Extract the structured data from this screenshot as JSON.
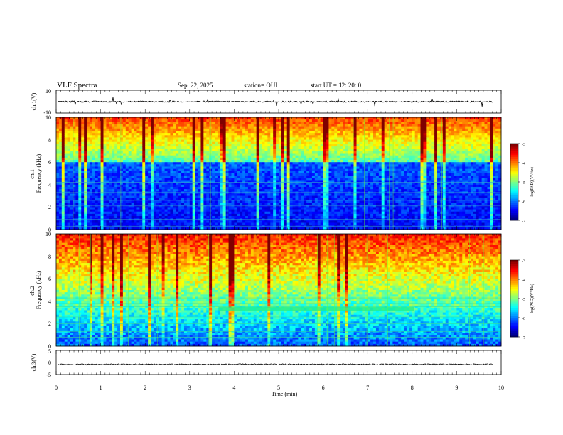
{
  "header": {
    "title": "VLF Spectra",
    "date": "Sep. 22, 2025",
    "station": "station= OUI",
    "start": "start  UT =   12: 20: 0"
  },
  "chart_data": [
    {
      "type": "line",
      "ylabel": "ch.1(V)",
      "ylim": [
        -10,
        10
      ],
      "y_ticks": [
        "10",
        "-10"
      ],
      "xlim": [
        0,
        10
      ],
      "baseline_value": 0
    },
    {
      "type": "heatmap",
      "ylabel": "ch.1\nFrequency (kHz)",
      "ylim": [
        0,
        10
      ],
      "y_ticks": [
        "0",
        "2",
        "4",
        "6",
        "8",
        "10"
      ],
      "xlim": [
        0,
        10
      ],
      "colorbar": {
        "label": "log(PSD)(V²/Hz)",
        "range": [
          -7,
          -3
        ],
        "ticks": [
          "-3",
          "-4",
          "-5",
          "-6",
          "-7"
        ]
      }
    },
    {
      "type": "heatmap",
      "ylabel": "ch.2\nFrequency (kHz)",
      "ylim": [
        0,
        10
      ],
      "y_ticks": [
        "0",
        "2",
        "4",
        "6",
        "8",
        "10"
      ],
      "xlim": [
        0,
        10
      ],
      "colorbar": {
        "label": "log(PSD)(V²/Hz)",
        "range": [
          -7,
          -3
        ],
        "ticks": [
          "-3",
          "-4",
          "-5",
          "-6",
          "-7"
        ]
      }
    },
    {
      "type": "line",
      "ylabel": "ch.3(V)",
      "ylim": [
        -5,
        5
      ],
      "y_ticks": [
        "5",
        "0",
        "-5"
      ],
      "xlim": [
        0,
        10
      ],
      "baseline_value": -0.8,
      "xlabel": "Time  (min)",
      "x_ticks": [
        "0",
        "1",
        "2",
        "3",
        "4",
        "5",
        "6",
        "7",
        "8",
        "9",
        "10"
      ]
    }
  ],
  "colors": {
    "scale": [
      "#00007f",
      "#0000ff",
      "#007fff",
      "#00ffff",
      "#00ff7f",
      "#7fff00",
      "#ffff00",
      "#ff7f00",
      "#ff0000"
    ],
    "axis": "#000000"
  }
}
